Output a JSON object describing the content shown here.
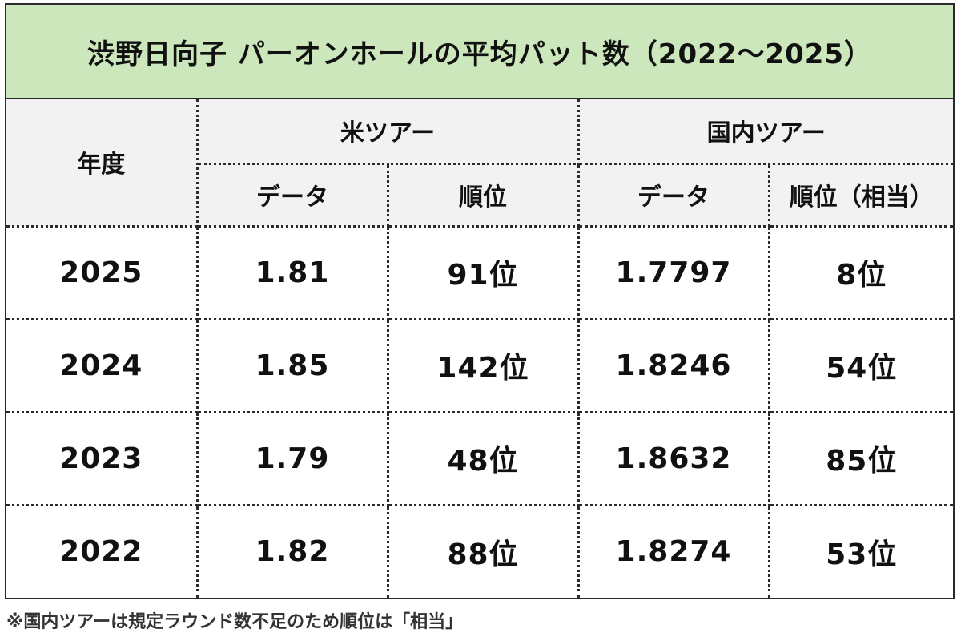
{
  "title": "渋野日向子 パーオンホールの平均パット数（2022～2025）",
  "header": {
    "year_label": "年度",
    "us_tour": "米ツアー",
    "jp_tour": "国内ツアー",
    "us_data": "データ",
    "us_rank": "順位",
    "jp_data": "データ",
    "jp_rank": "順位（相当）"
  },
  "rows": [
    {
      "year": "2025",
      "us_data": "1.81",
      "us_rank": "91位",
      "jp_data": "1.7797",
      "jp_rank": "8位"
    },
    {
      "year": "2024",
      "us_data": "1.85",
      "us_rank": "142位",
      "jp_data": "1.8246",
      "jp_rank": "54位"
    },
    {
      "year": "2023",
      "us_data": "1.79",
      "us_rank": "48位",
      "jp_data": "1.8632",
      "jp_rank": "85位"
    },
    {
      "year": "2022",
      "us_data": "1.82",
      "us_rank": "88位",
      "jp_data": "1.8274",
      "jp_rank": "53位"
    }
  ],
  "footnote": "※国内ツアーは規定ラウンド数不足のため順位は「相当」",
  "colors": {
    "title_bg": "#cde7bd",
    "header_bg": "#f2f2f2",
    "border": "#2a2a2a"
  }
}
